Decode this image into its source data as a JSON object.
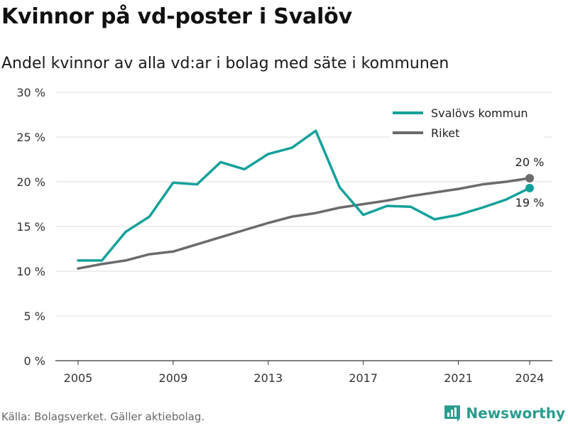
{
  "title": "Kvinnor på vd-poster i Svalöv",
  "subtitle": "Andel kvinnor av alla vd:ar i bolag med säte i kommunen",
  "source": "Källa: Bolagsverket. Gäller aktiebolag.",
  "brand": {
    "name": "Newsworthy",
    "icon": "bar-chart-logo-icon",
    "color": "#2a9d8f"
  },
  "chart_data": {
    "type": "line",
    "x": [
      2005,
      2006,
      2007,
      2008,
      2009,
      2010,
      2011,
      2012,
      2013,
      2014,
      2015,
      2016,
      2017,
      2018,
      2019,
      2020,
      2021,
      2022,
      2023,
      2024
    ],
    "series": [
      {
        "name": "Svalövs kommun",
        "color": "#14a19a",
        "values": [
          11.2,
          11.2,
          14.4,
          16.1,
          19.9,
          19.7,
          22.2,
          21.4,
          23.1,
          23.8,
          25.7,
          19.4,
          16.3,
          17.3,
          17.2,
          15.8,
          16.3,
          17.1,
          18.0,
          19.3
        ],
        "end_label": "19 %"
      },
      {
        "name": "Riket",
        "color": "#6b6b6e",
        "values": [
          10.3,
          10.8,
          11.2,
          11.9,
          12.2,
          13.0,
          13.8,
          14.6,
          15.4,
          16.1,
          16.5,
          17.1,
          17.5,
          17.9,
          18.4,
          18.8,
          19.2,
          19.7,
          20.0,
          20.4
        ],
        "end_label": "20 %"
      }
    ],
    "ylim": [
      0,
      30
    ],
    "y_ticks": [
      0,
      5,
      10,
      15,
      20,
      25,
      30
    ],
    "y_tick_labels": [
      "0 %",
      "5 %",
      "10 %",
      "15 %",
      "20 %",
      "25 %",
      "30 %"
    ],
    "x_ticks": [
      2005,
      2009,
      2013,
      2017,
      2021,
      2024
    ],
    "x_tick_labels": [
      "2005",
      "2009",
      "2013",
      "2017",
      "2021",
      "2024"
    ],
    "grid": true,
    "legend": "top-right"
  }
}
